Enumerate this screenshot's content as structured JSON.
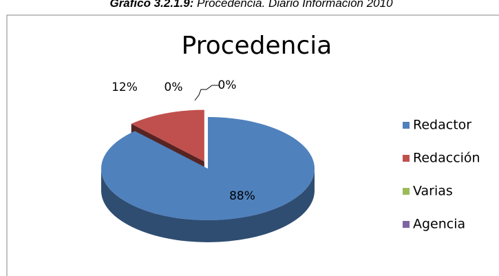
{
  "caption": {
    "number": "Gráfico 3.2.1.9:",
    "text": "Procedencia. Diario Información 2010"
  },
  "chart_data": {
    "type": "pie3d",
    "title": "Procedencia",
    "categories": [
      "Redactor",
      "Redacción",
      "Varias",
      "Agencia"
    ],
    "values": [
      88,
      12,
      0,
      0
    ],
    "value_labels": [
      "88%",
      "12%",
      "0%",
      "0%"
    ],
    "colors": [
      "#4f81bd",
      "#c0504d",
      "#9bbb59",
      "#8064a2"
    ],
    "legend": "right"
  }
}
